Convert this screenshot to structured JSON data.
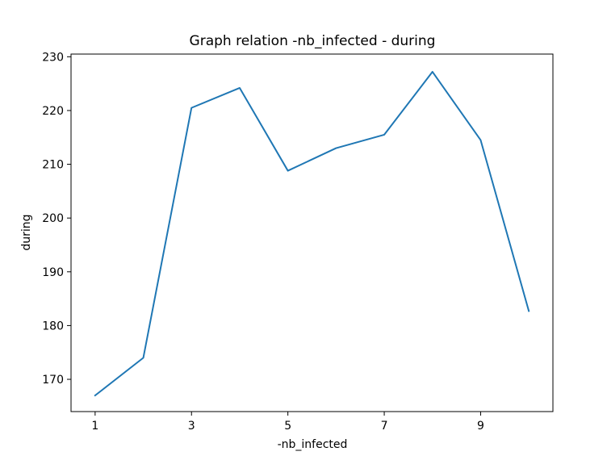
{
  "chart_data": {
    "type": "line",
    "title": "Graph relation -nb_infected - during",
    "xlabel": "-nb_infected",
    "ylabel": "during",
    "x": [
      1,
      2,
      3,
      4,
      5,
      6,
      7,
      8,
      9,
      10
    ],
    "series": [
      {
        "values": [
          167.0,
          174.0,
          220.5,
          224.2,
          208.8,
          213.0,
          215.5,
          227.2,
          214.5,
          182.7
        ]
      }
    ],
    "xlim": [
      0.5,
      10.5
    ],
    "ylim": [
      164,
      230.5
    ],
    "xticks": [
      1,
      3,
      5,
      7,
      9
    ],
    "yticks": [
      170,
      180,
      190,
      200,
      210,
      220,
      230
    ],
    "grid": false,
    "legend": "none",
    "line_color": "#1f77b4"
  }
}
